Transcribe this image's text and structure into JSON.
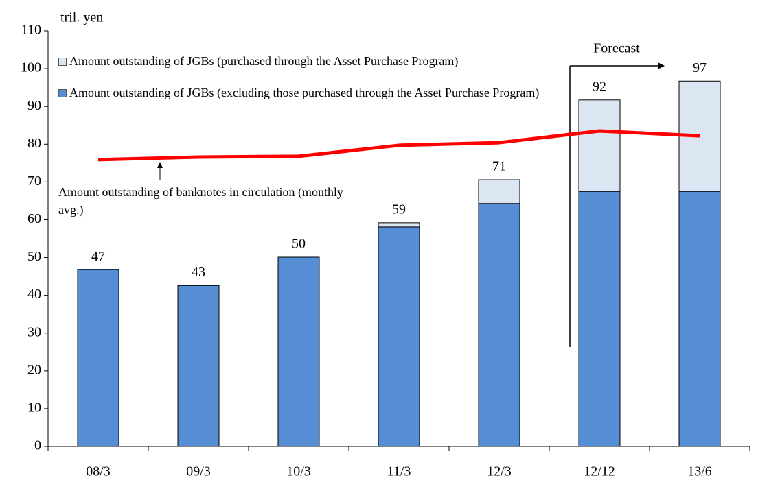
{
  "chart_data": {
    "type": "bar",
    "y_axis_label": "tril. yen",
    "categories": [
      "08/3",
      "09/3",
      "10/3",
      "11/3",
      "12/3",
      "12/12",
      "13/6"
    ],
    "series": [
      {
        "name": "Amount outstanding of JGBs (excluding those purchased through the Asset Purchase Program)",
        "color": "#558ed5",
        "values": [
          46.8,
          42.6,
          50.1,
          58.1,
          64.3,
          67.5,
          67.5
        ]
      },
      {
        "name": "Amount outstanding of JGBs (purchased through the Asset Purchase Program)",
        "color": "#dce6f2",
        "values": [
          0,
          0,
          0,
          1.1,
          6.3,
          24.2,
          29.2
        ]
      },
      {
        "name": "Amount outstanding of banknotes in circulation (monthly avg.)",
        "type": "line",
        "color": "#ff0000",
        "values": [
          75.9,
          76.6,
          76.8,
          79.7,
          80.4,
          83.5,
          82.2
        ]
      }
    ],
    "totals": [
      47,
      43,
      50,
      59,
      71,
      92,
      97
    ],
    "forecast_label": "Forecast",
    "ylim": [
      0,
      110
    ],
    "yticks": [
      0,
      10,
      20,
      30,
      40,
      50,
      60,
      70,
      80,
      90,
      100,
      110
    ]
  }
}
